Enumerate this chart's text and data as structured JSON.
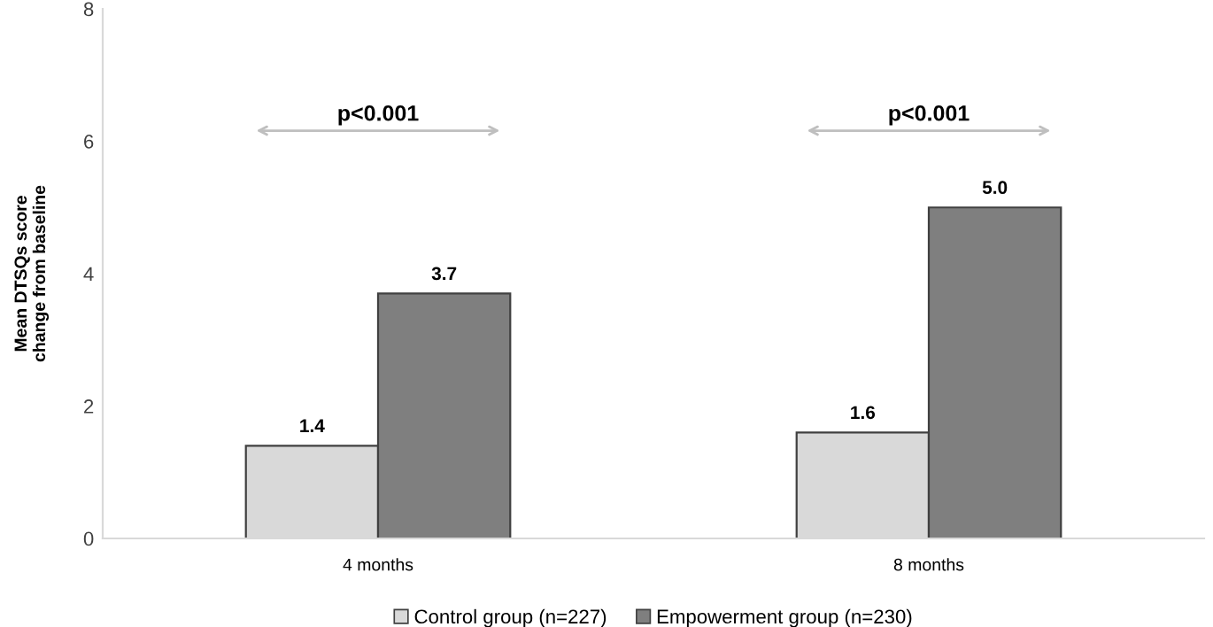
{
  "chart_data": {
    "type": "bar",
    "ylabel": "Mean DTSQs score\nchange from baseline",
    "categories": [
      "4 months",
      "8 months"
    ],
    "series": [
      {
        "name": "Control group (n=227)",
        "color": "#d9d9d9",
        "values": [
          1.4,
          1.6
        ],
        "value_labels": [
          "1.4",
          "1.6"
        ]
      },
      {
        "name": "Empowerment group (n=230)",
        "color": "#7f7f7f",
        "values": [
          3.7,
          5.0
        ],
        "value_labels": [
          "3.7",
          "5.0"
        ]
      }
    ],
    "ylim": [
      0,
      8
    ],
    "yticks": [
      0,
      2,
      4,
      6,
      8
    ],
    "grid": false,
    "legend": "bottom",
    "annotations": [
      "p<0.001",
      "p<0.001"
    ]
  }
}
